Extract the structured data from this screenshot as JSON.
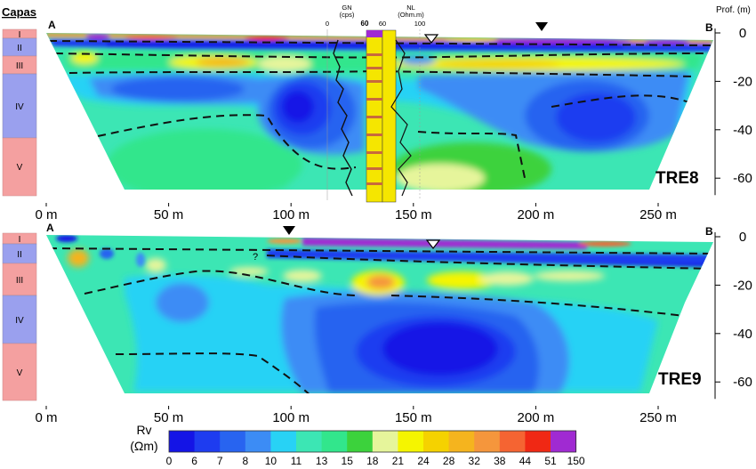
{
  "layers_header": "Capas",
  "layer_names": [
    "I",
    "II",
    "III",
    "IV",
    "V"
  ],
  "layer_colors": {
    "I": "#f4a0a0",
    "II": "#9aa0ee",
    "III": "#f4a0a0",
    "IV": "#9aa0ee",
    "V": "#f4a0a0"
  },
  "depth_axis_label": "Prof. (m)",
  "point_a": "A",
  "point_b": "B",
  "log_curves": {
    "gn_label_line1": "GN",
    "gn_label_line2": "(cps)",
    "gn_ticks": [
      "0",
      "60"
    ],
    "nl_label_line1": "NL",
    "nl_label_line2": "(Ohm.m)",
    "nl_ticks": [
      "60",
      "100"
    ]
  },
  "colorbar": {
    "label_line1": "Rv",
    "label_line2": "(Ωm)",
    "ticks": [
      "0",
      "6",
      "7",
      "8",
      "10",
      "11",
      "13",
      "15",
      "18",
      "21",
      "24",
      "28",
      "32",
      "38",
      "44",
      "51",
      "150"
    ],
    "colors": [
      "#1414e6",
      "#1e3cf0",
      "#2864f0",
      "#3c8cf5",
      "#28d2f5",
      "#3ce6b4",
      "#32e68c",
      "#3cd23c",
      "#e6f59b",
      "#f5f500",
      "#f5d200",
      "#f5b41e",
      "#f5963c",
      "#f56432",
      "#f02814",
      "#a02ad2"
    ]
  },
  "chart_data": [
    {
      "type": "heatmap",
      "title": "TRE8",
      "xlabel": "",
      "ylabel": "Prof. (m)",
      "x_ticks": [
        0,
        50,
        100,
        150,
        200,
        250
      ],
      "x_tick_labels": [
        "0 m",
        "50 m",
        "100 m",
        "150 m",
        "200 m",
        "250 m"
      ],
      "y_ticks": [
        0,
        -20,
        -40,
        -60
      ],
      "y_tick_labels": [
        "0",
        "-20",
        "-40",
        "-60"
      ],
      "xlim": [
        0,
        270
      ],
      "ylim": [
        -67,
        2
      ],
      "layers": [
        {
          "name": "I",
          "top": 0,
          "bottom": -2
        },
        {
          "name": "II",
          "top": -2,
          "bottom": -7
        },
        {
          "name": "III",
          "top": -7,
          "bottom": -14
        },
        {
          "name": "IV",
          "top": -14,
          "bottom": -40
        },
        {
          "name": "V",
          "top": -40,
          "bottom": -67
        }
      ],
      "markers": {
        "solid_triangle_x": 205,
        "open_triangle_x": 158
      },
      "has_borehole_log": true,
      "colorscale_values": [
        0,
        6,
        7,
        8,
        10,
        11,
        13,
        15,
        18,
        21,
        24,
        28,
        32,
        38,
        44,
        51,
        150
      ]
    },
    {
      "type": "heatmap",
      "title": "TRE9",
      "xlabel": "",
      "ylabel": "",
      "x_ticks": [
        0,
        50,
        100,
        150,
        200,
        250
      ],
      "x_tick_labels": [
        "0 m",
        "50 m",
        "100 m",
        "150 m",
        "200 m",
        "250 m"
      ],
      "y_ticks": [
        0,
        -20,
        -40,
        -60
      ],
      "y_tick_labels": [
        "0",
        "-20",
        "-40",
        "-60"
      ],
      "xlim": [
        0,
        270
      ],
      "ylim": [
        -67,
        2
      ],
      "layers": [
        {
          "name": "I",
          "top": 0,
          "bottom": -2
        },
        {
          "name": "II",
          "top": -2,
          "bottom": -7
        },
        {
          "name": "III",
          "top": -7,
          "bottom": -19
        },
        {
          "name": "IV",
          "top": -19,
          "bottom": -41
        },
        {
          "name": "V",
          "top": -41,
          "bottom": -67
        }
      ],
      "markers": {
        "solid_triangle_x": 100,
        "open_triangle_x": 158
      },
      "question_mark": "?",
      "colorscale_values": [
        0,
        6,
        7,
        8,
        10,
        11,
        13,
        15,
        18,
        21,
        24,
        28,
        32,
        38,
        44,
        51,
        150
      ]
    }
  ]
}
